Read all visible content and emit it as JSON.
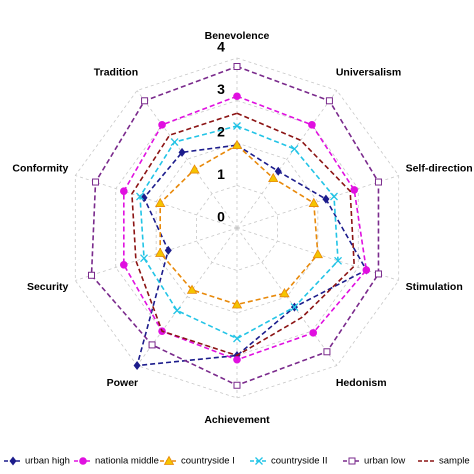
{
  "chart_data": {
    "type": "radar",
    "categories": [
      "Benevolence",
      "Universalism",
      "Self-direction",
      "Stimulation",
      "Hedonism",
      "Achievement",
      "Power",
      "Security",
      "Conformity",
      "Tradition"
    ],
    "rlim": [
      0,
      4
    ],
    "rticks": [
      0,
      1,
      2,
      3,
      4
    ],
    "grid": true,
    "legend": "bottom",
    "series": [
      {
        "name": "urban high",
        "color": "#1c1c8c",
        "marker": "diamond",
        "values": [
          1.95,
          1.65,
          2.2,
          3.2,
          2.3,
          3.0,
          4.0,
          1.7,
          2.3,
          2.2
        ]
      },
      {
        "name": "nationla middle",
        "color": "#e010e0",
        "marker": "circle",
        "values": [
          3.1,
          3.0,
          2.9,
          3.2,
          3.05,
          3.1,
          3.0,
          2.8,
          2.8,
          3.0
        ]
      },
      {
        "name": "countryside I",
        "color": "#e8890a",
        "marker": "triangle",
        "values": [
          1.95,
          1.45,
          1.9,
          2.0,
          1.9,
          1.8,
          1.8,
          1.9,
          1.9,
          1.7
        ]
      },
      {
        "name": "countryside II",
        "color": "#22c4e6",
        "marker": "x",
        "values": [
          2.4,
          2.3,
          2.4,
          2.5,
          2.3,
          2.6,
          2.4,
          2.3,
          2.4,
          2.5
        ]
      },
      {
        "name": "urban low",
        "color": "#7a2a8c",
        "marker": "square",
        "values": [
          3.8,
          3.7,
          3.5,
          3.5,
          3.6,
          3.7,
          3.4,
          3.6,
          3.5,
          3.7
        ]
      },
      {
        "name": "sample",
        "color": "#8c1414",
        "marker": "none",
        "values": [
          2.7,
          2.55,
          2.8,
          2.9,
          2.6,
          3.0,
          3.0,
          2.5,
          2.6,
          2.7
        ]
      }
    ]
  }
}
